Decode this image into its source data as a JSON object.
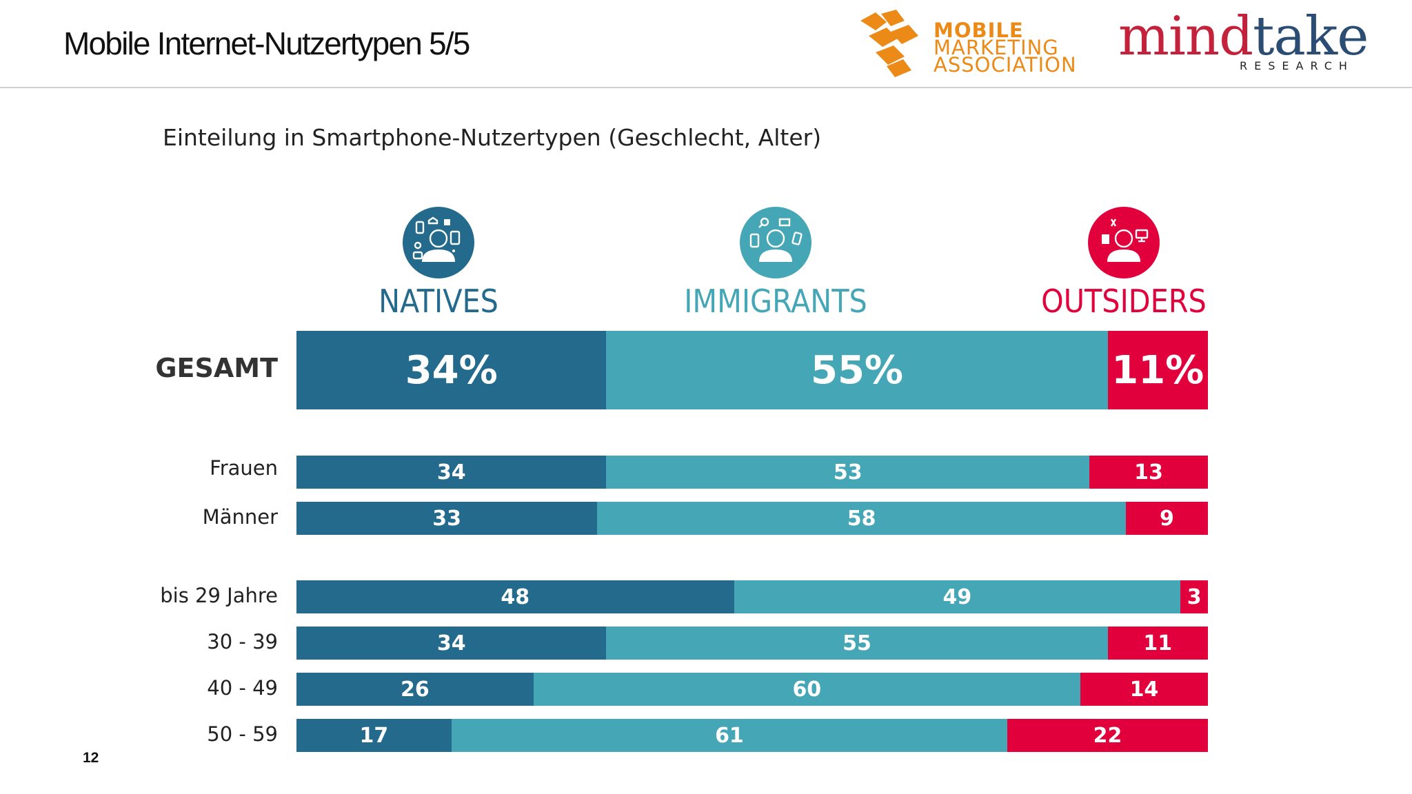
{
  "slide": {
    "title": "Mobile Internet-Nutzertypen 5/5",
    "page_number": "12"
  },
  "logos": {
    "mma": {
      "line1": "MOBILE",
      "line2": "MARKETING",
      "line3": "ASSOCIATION"
    },
    "mindtake": {
      "word_part1": "mind",
      "word_part2": "take",
      "tagline": "RESEARCH"
    }
  },
  "colors": {
    "natives": "#236a8c",
    "immigrants": "#45a6b6",
    "outsiders": "#e1003c",
    "mma_orange": "#ec8a17",
    "mindtake_red": "#c4223b",
    "mindtake_blue": "#2b4d73"
  },
  "types": [
    {
      "key": "natives",
      "label": "NATIVES",
      "icon": "person-apps-icon"
    },
    {
      "key": "immigrants",
      "label": "IMMIGRANTS",
      "icon": "person-devices-icon"
    },
    {
      "key": "outsiders",
      "label": "OUTSIDERS",
      "icon": "person-computer-icon"
    }
  ],
  "chart_data": {
    "type": "bar",
    "orientation": "horizontal",
    "stacked": true,
    "normalized": true,
    "title": "Einteilung in Smartphone-Nutzertypen (Geschlecht, Alter)",
    "categories": [
      "GESAMT",
      "Frauen",
      "Männer",
      "bis 29 Jahre",
      "30 - 39",
      "40 - 49",
      "50 - 59"
    ],
    "series": [
      {
        "name": "NATIVES",
        "values": [
          34,
          34,
          33,
          48,
          34,
          26,
          17
        ]
      },
      {
        "name": "IMMIGRANTS",
        "values": [
          55,
          53,
          58,
          49,
          55,
          60,
          61
        ]
      },
      {
        "name": "OUTSIDERS",
        "values": [
          11,
          13,
          9,
          3,
          11,
          14,
          22
        ]
      }
    ],
    "value_labels": [
      [
        "34%",
        "55%",
        "11%"
      ],
      [
        "34",
        "53",
        "13"
      ],
      [
        "33",
        "58",
        "9"
      ],
      [
        "48",
        "49",
        "3"
      ],
      [
        "34",
        "55",
        "11"
      ],
      [
        "26",
        "60",
        "14"
      ],
      [
        "17",
        "61",
        "22"
      ]
    ],
    "xlim": [
      0,
      100
    ],
    "grid": false,
    "legend": "top"
  }
}
